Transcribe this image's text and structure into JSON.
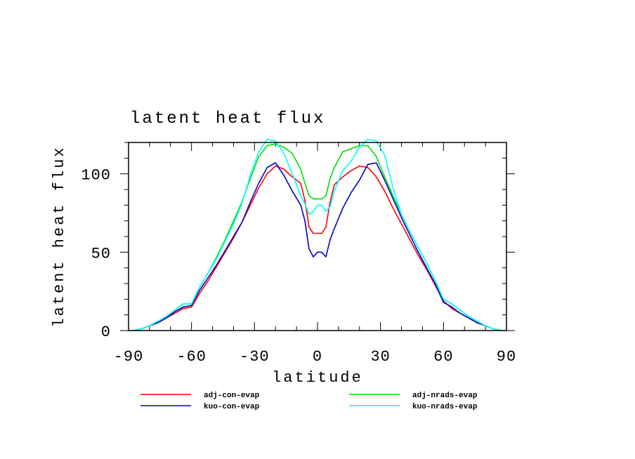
{
  "chart_data": {
    "type": "line",
    "title": "latent heat flux",
    "xlabel": "latitude",
    "ylabel": "latent heat flux",
    "xlim": [
      -90,
      90
    ],
    "ylim": [
      0,
      120
    ],
    "x_ticks": [
      "-90",
      "-60",
      "-30",
      "0",
      "30",
      "60",
      "90"
    ],
    "y_ticks": [
      "0",
      "50",
      "100"
    ],
    "legend_position": "bottom",
    "series": [
      {
        "name": "adj-con-evap",
        "color": "#ff0000",
        "x": [
          -88,
          -84,
          -80,
          -76,
          -72,
          -68,
          -64,
          -60,
          -56,
          -52,
          -48,
          -44,
          -40,
          -36,
          -32,
          -28,
          -24,
          -20,
          -16,
          -12,
          -8,
          -6,
          -4,
          -2,
          0,
          2,
          4,
          6,
          8,
          12,
          16,
          20,
          24,
          28,
          32,
          36,
          40,
          44,
          48,
          52,
          56,
          60,
          64,
          68,
          72,
          76,
          80,
          84,
          88
        ],
        "y": [
          0,
          1,
          3,
          5,
          8,
          11,
          14,
          15,
          24,
          32,
          41,
          50,
          59,
          69,
          80,
          91,
          100,
          105,
          103,
          98,
          94,
          83,
          66,
          62,
          62,
          62,
          66,
          82,
          93,
          98,
          102,
          105,
          104,
          98,
          89,
          78,
          68,
          58,
          48,
          39,
          29,
          19,
          14,
          11,
          8,
          5,
          3,
          1,
          0
        ]
      },
      {
        "name": "kuo-con-evap",
        "color": "#0000cc",
        "x": [
          -88,
          -84,
          -80,
          -76,
          -72,
          -68,
          -64,
          -60,
          -56,
          -52,
          -48,
          -44,
          -40,
          -36,
          -32,
          -28,
          -24,
          -20,
          -16,
          -12,
          -8,
          -6,
          -4,
          -2,
          0,
          2,
          4,
          6,
          8,
          12,
          16,
          20,
          24,
          28,
          32,
          36,
          40,
          44,
          48,
          52,
          56,
          60,
          64,
          68,
          72,
          76,
          80,
          84,
          88
        ],
        "y": [
          0,
          1,
          3,
          5,
          8,
          12,
          15,
          16,
          26,
          34,
          42,
          51,
          60,
          69,
          82,
          94,
          104,
          107,
          99,
          89,
          80,
          70,
          52,
          47,
          50,
          50,
          47,
          58,
          65,
          78,
          88,
          96,
          106,
          107,
          96,
          84,
          72,
          61,
          50,
          40,
          30,
          18,
          15,
          11,
          8,
          5,
          3,
          1,
          0
        ]
      },
      {
        "name": "adj-nrads-evap",
        "color": "#00dd00",
        "x": [
          -88,
          -84,
          -80,
          -76,
          -72,
          -68,
          -64,
          -60,
          -56,
          -52,
          -48,
          -44,
          -40,
          -36,
          -32,
          -28,
          -24,
          -20,
          -16,
          -12,
          -8,
          -6,
          -4,
          -2,
          0,
          2,
          4,
          6,
          8,
          12,
          16,
          20,
          24,
          28,
          32,
          36,
          40,
          44,
          48,
          52,
          56,
          60,
          64,
          68,
          72,
          76,
          80,
          84,
          88
        ],
        "y": [
          0,
          1,
          3,
          6,
          9,
          13,
          17,
          17,
          28,
          37,
          47,
          58,
          70,
          82,
          97,
          111,
          118,
          119,
          117,
          113,
          103,
          94,
          86,
          84,
          84,
          84,
          86,
          97,
          104,
          114,
          116,
          118,
          118,
          111,
          98,
          86,
          74,
          63,
          53,
          43,
          32,
          20,
          17,
          13,
          9,
          6,
          3,
          1,
          0
        ]
      },
      {
        "name": "kuo-nrads-evap",
        "color": "#00ffff",
        "x": [
          -88,
          -84,
          -80,
          -76,
          -72,
          -68,
          -64,
          -60,
          -56,
          -52,
          -48,
          -44,
          -40,
          -36,
          -32,
          -28,
          -24,
          -20,
          -16,
          -12,
          -8,
          -6,
          -4,
          -2,
          0,
          2,
          4,
          6,
          8,
          12,
          16,
          20,
          24,
          28,
          32,
          36,
          40,
          44,
          48,
          52,
          56,
          60,
          64,
          68,
          72,
          76,
          80,
          84,
          88
        ],
        "y": [
          0,
          1,
          3,
          6,
          9,
          13,
          17,
          17,
          28,
          37,
          46,
          57,
          68,
          81,
          99,
          114,
          122,
          121,
          113,
          100,
          86,
          81,
          74,
          76,
          80,
          80,
          76,
          79,
          89,
          102,
          108,
          117,
          122,
          121,
          112,
          91,
          74,
          63,
          53,
          43,
          32,
          20,
          17,
          13,
          9,
          6,
          3,
          1,
          0
        ]
      }
    ]
  }
}
